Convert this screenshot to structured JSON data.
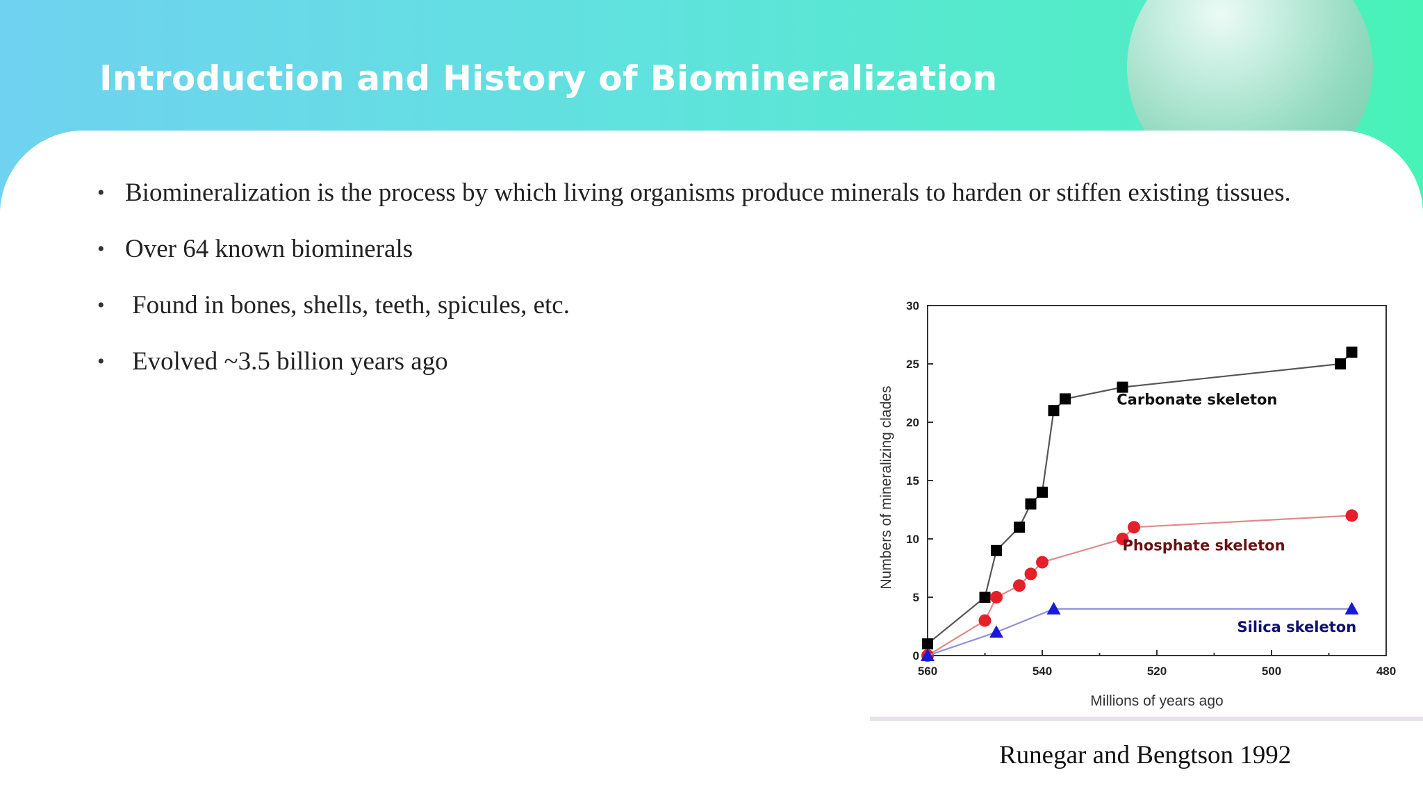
{
  "slide": {
    "title": "Introduction and History of Biomineralization",
    "bullets": [
      "Biomineralization is the process by which living organisms produce minerals to harden or stiffen existing tissues.",
      "Over 64 known biominerals",
      "Found in bones, shells, teeth, spicules, etc.",
      "Evolved ~3.5 billion years ago"
    ],
    "citation": "Runegar and Bengtson 1992"
  },
  "colors": {
    "carbonate": "#000000",
    "phosphate": "#e5202a",
    "silica": "#1a1ad6",
    "silica_line": "#8f8fd8",
    "phosphate_line": "#e08a8a",
    "carbonate_line": "#555555"
  },
  "chart_data": {
    "type": "line",
    "xlabel": "Millions of years ago",
    "ylabel": "Numbers of mineralizing clades",
    "xlim": [
      560,
      480
    ],
    "x_reversed": true,
    "ylim": [
      0,
      30
    ],
    "x_ticks": [
      560,
      540,
      520,
      500,
      480
    ],
    "y_ticks": [
      0,
      5,
      10,
      15,
      20,
      25,
      30
    ],
    "grid": false,
    "series": [
      {
        "name": "Carbonate skeleton",
        "marker": "square",
        "x": [
          560,
          550,
          548,
          544,
          542,
          540,
          538,
          536,
          526,
          488,
          486
        ],
        "y": [
          1,
          5,
          9,
          11,
          13,
          14,
          21,
          22,
          23,
          25,
          26
        ]
      },
      {
        "name": "Phosphate skeleton",
        "marker": "circle",
        "x": [
          560,
          550,
          548,
          544,
          542,
          540,
          526,
          524,
          486
        ],
        "y": [
          0,
          3,
          5,
          6,
          7,
          8,
          10,
          11,
          12
        ]
      },
      {
        "name": "Silica skeleton",
        "marker": "triangle",
        "x": [
          560,
          548,
          538,
          486
        ],
        "y": [
          0,
          2,
          4,
          4
        ]
      }
    ]
  }
}
